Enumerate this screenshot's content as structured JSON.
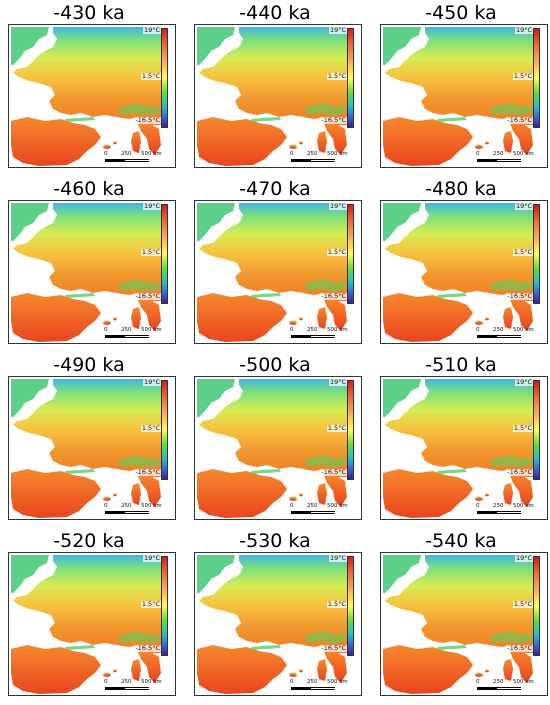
{
  "panels": [
    {
      "title": "-430 ka"
    },
    {
      "title": "-440 ka"
    },
    {
      "title": "-450 ka"
    },
    {
      "title": "-460 ka"
    },
    {
      "title": "-470 ka"
    },
    {
      "title": "-480 ka"
    },
    {
      "title": "-490 ka"
    },
    {
      "title": "-500 ka"
    },
    {
      "title": "-510 ka"
    },
    {
      "title": "-520 ka"
    },
    {
      "title": "-530 ka"
    },
    {
      "title": "-540 ka"
    }
  ],
  "colorbar": {
    "max_label": "19°C",
    "mid_label": "1.5°C",
    "min_label": "-16.5°C",
    "colors": [
      "#d7191c",
      "#fdae61",
      "#ffff55",
      "#66dd44",
      "#22bbcc",
      "#332288"
    ]
  },
  "scale_bar": {
    "zero": "0",
    "mid": "250",
    "end": "500 km"
  }
}
